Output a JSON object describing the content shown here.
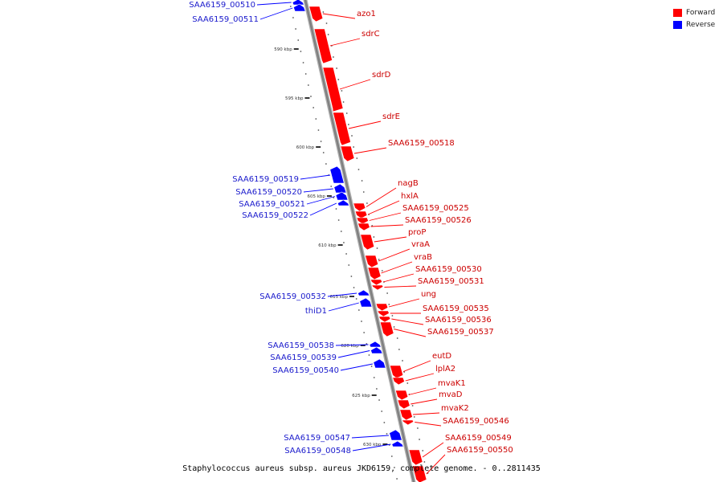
{
  "legend": [
    {
      "label": "Forward",
      "color": "#ff0000"
    },
    {
      "label": "Reverse",
      "color": "#0000ff"
    }
  ],
  "caption": "Staphylococcus aureus subsp. aureus JKD6159, complete genome. - 0..2811435",
  "colors": {
    "forward": "#ff0000",
    "reverse": "#0000ff",
    "forward_label": "#cc0000",
    "reverse_label": "#1a1acc",
    "backbone": "#808080"
  },
  "ticks": [
    "590 kbp",
    "595 kbp",
    "600 kbp",
    "605 kbp",
    "610 kbp",
    "615 kbp",
    "620 kbp",
    "625 kbp",
    "630 kbp"
  ],
  "forward_genes": [
    "azo1",
    "sdrC",
    "sdrD",
    "sdrE",
    "SAA6159_00518",
    "nagB",
    "hxlA",
    "SAA6159_00525",
    "SAA6159_00526",
    "proP",
    "vraA",
    "vraB",
    "SAA6159_00530",
    "SAA6159_00531",
    "ung",
    "SAA6159_00535",
    "SAA6159_00536",
    "SAA6159_00537",
    "eutD",
    "lplA2",
    "mvaK1",
    "mvaD",
    "mvaK2",
    "SAA6159_00546",
    "SAA6159_00549",
    "SAA6159_00550"
  ],
  "reverse_genes": [
    "SAA6159_00510",
    "SAA6159_00511",
    "SAA6159_00519",
    "SAA6159_00520",
    "SAA6159_00521",
    "SAA6159_00522",
    "SAA6159_00532",
    "thiD1",
    "SAA6159_00538",
    "SAA6159_00539",
    "SAA6159_00540",
    "SAA6159_00547",
    "SAA6159_00548"
  ]
}
